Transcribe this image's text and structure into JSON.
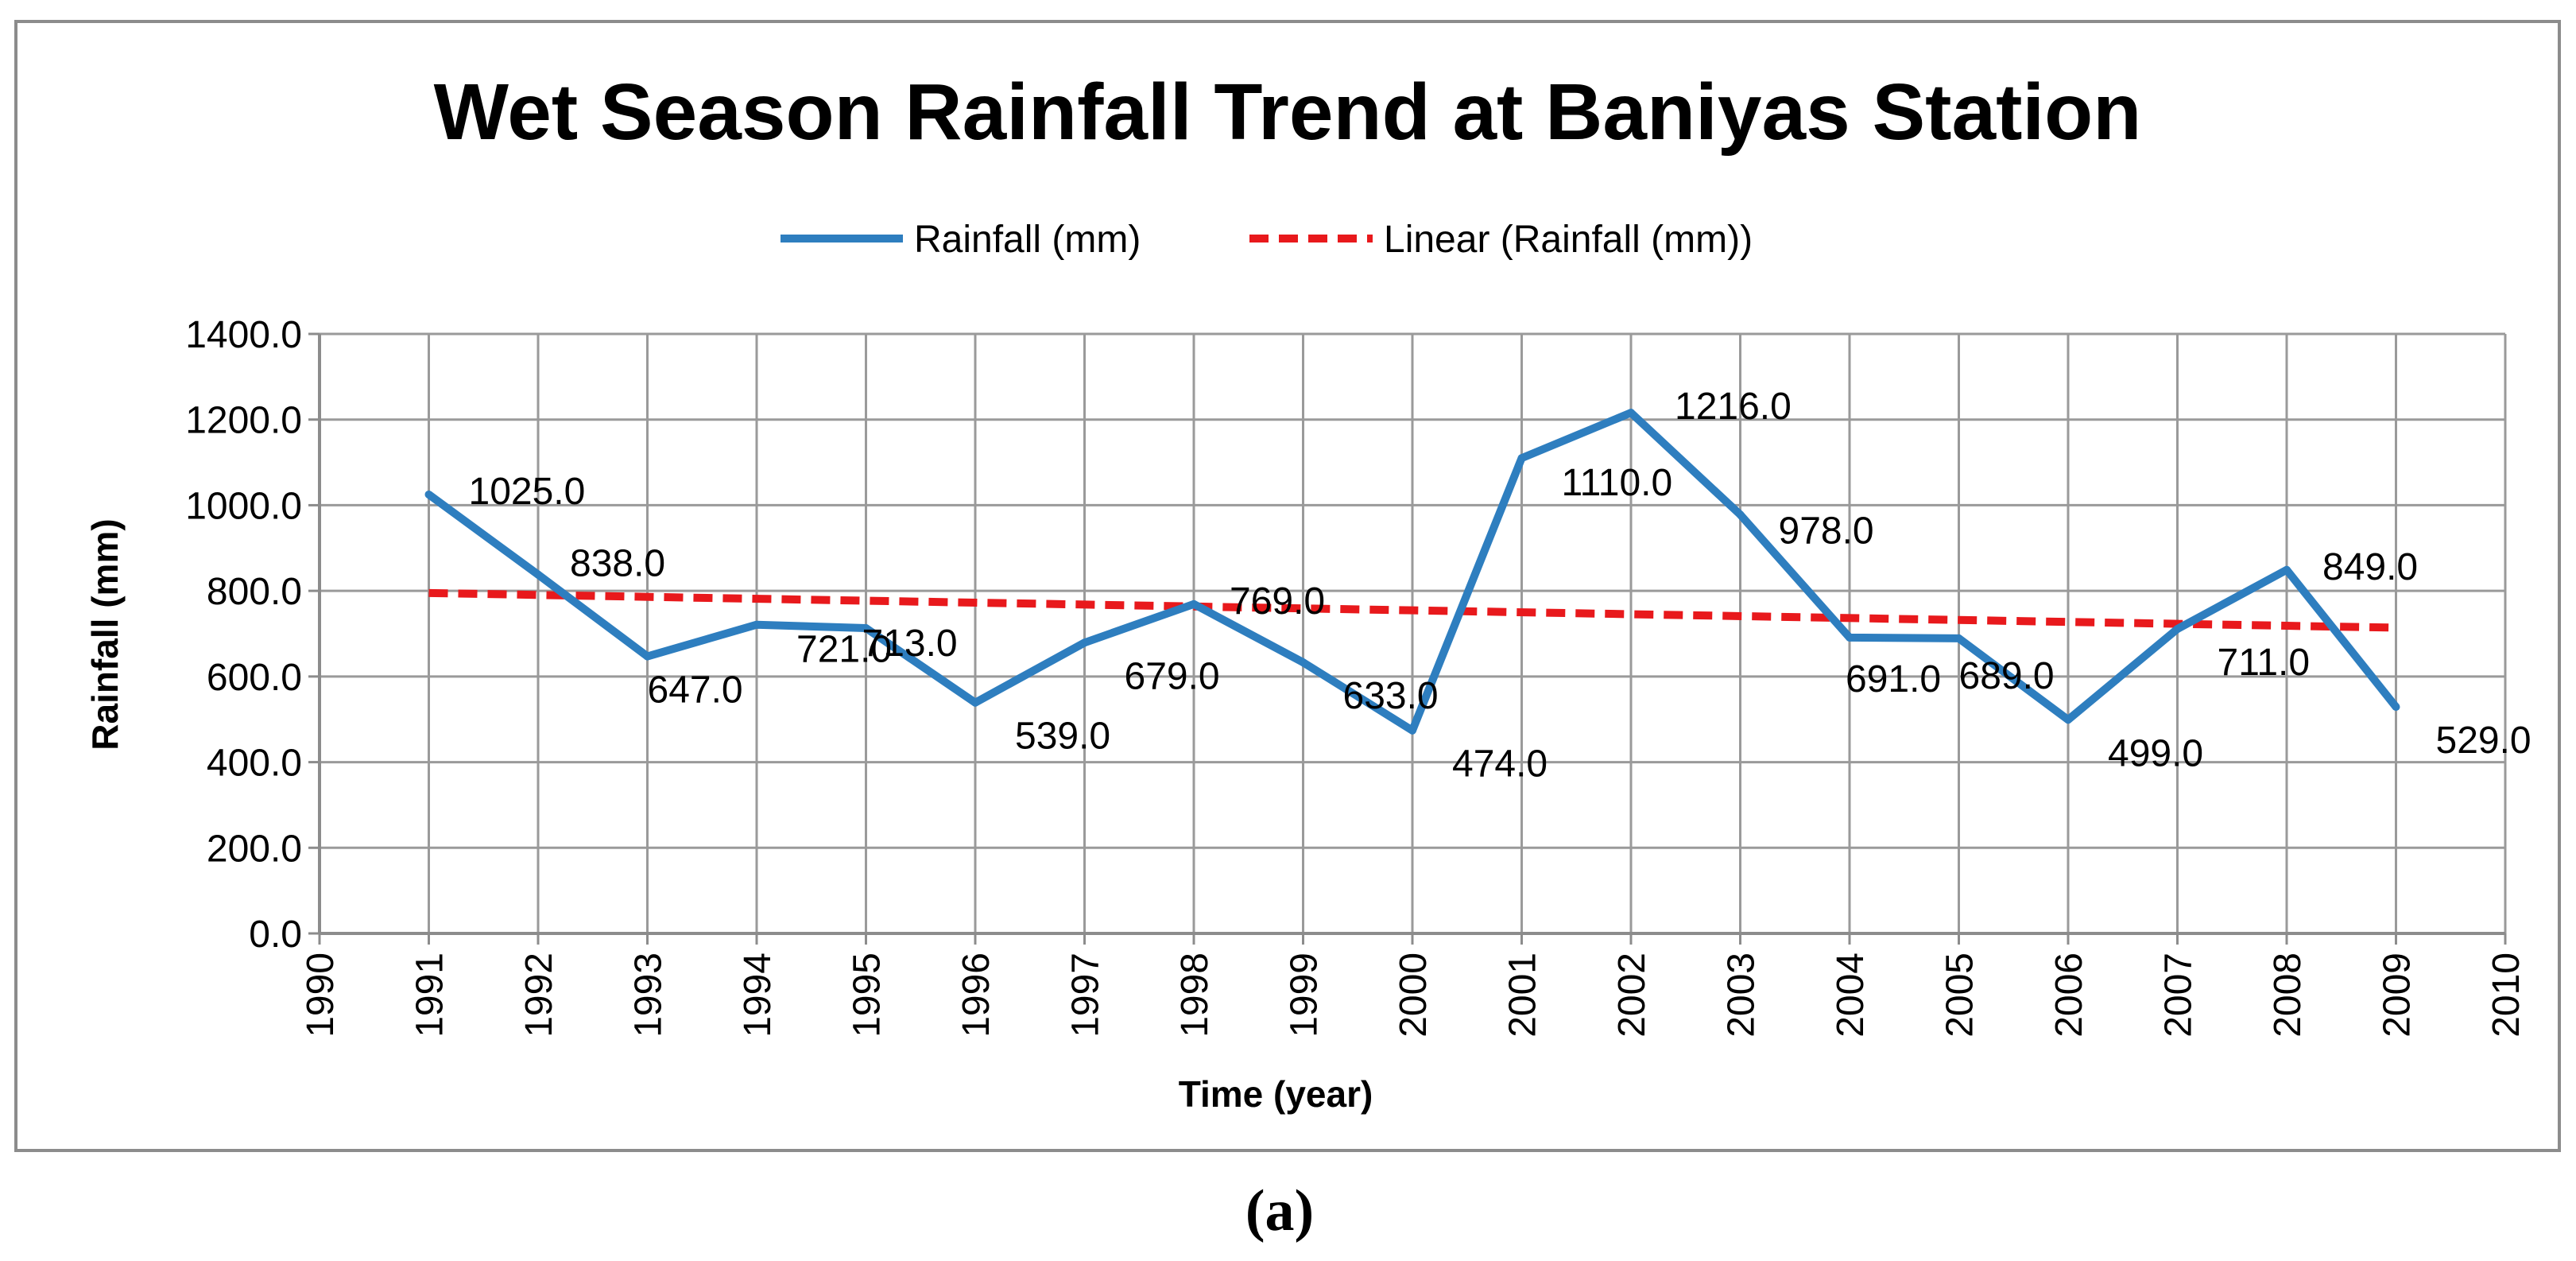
{
  "chart_data": {
    "type": "line",
    "title": "Wet Season Rainfall Trend at Baniyas Station",
    "xlabel": "Time (year)",
    "ylabel": "Rainfall (mm)",
    "xlim": [
      1990,
      2010
    ],
    "ylim": [
      0,
      1400
    ],
    "x_ticks": [
      "1990",
      "1991",
      "1992",
      "1993",
      "1994",
      "1995",
      "1996",
      "1997",
      "1998",
      "1999",
      "2000",
      "2001",
      "2002",
      "2003",
      "2004",
      "2005",
      "2006",
      "2007",
      "2008",
      "2009",
      "2010"
    ],
    "y_ticks": [
      "0.0",
      "200.0",
      "400.0",
      "600.0",
      "800.0",
      "1000.0",
      "1200.0",
      "1400.0"
    ],
    "grid": true,
    "legend_position": "top-center",
    "series": [
      {
        "name": "Rainfall (mm)",
        "color": "#2E7EBF",
        "style": "solid",
        "x": [
          1991,
          1992,
          1993,
          1994,
          1995,
          1996,
          1997,
          1998,
          1999,
          2000,
          2001,
          2002,
          2003,
          2004,
          2005,
          2006,
          2007,
          2008,
          2009
        ],
        "values": [
          1025,
          838,
          647,
          721,
          713,
          539,
          679,
          769,
          633,
          474,
          1110,
          1216,
          978,
          691,
          689,
          499,
          711,
          849,
          529
        ],
        "labels": [
          "1025.0",
          "838.0",
          "647.0",
          "721.0",
          "713.0",
          "539.0",
          "679.0",
          "769.0",
          "633.0",
          "474.0",
          "1110.0",
          "1216.0",
          "978.0",
          "691.0",
          "689.0",
          "499.0",
          "711.0",
          "849.0",
          "529.0"
        ]
      },
      {
        "name": "Linear (Rainfall (mm))",
        "color": "#E8191C",
        "style": "dashed",
        "x": [
          1991,
          2009
        ],
        "values": [
          795,
          714
        ]
      }
    ],
    "caption": "(a)"
  }
}
